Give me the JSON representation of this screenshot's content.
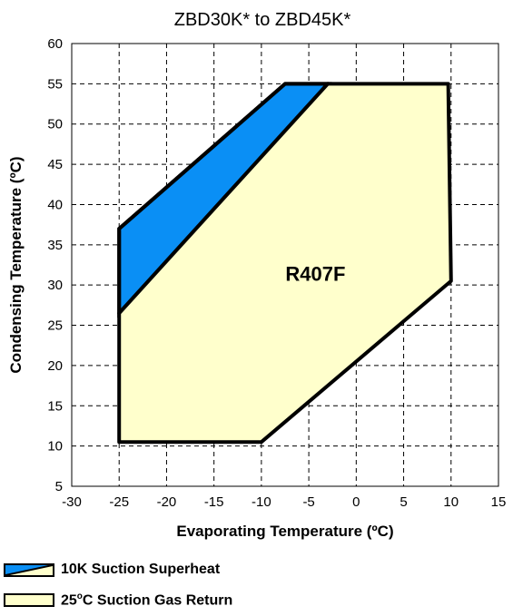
{
  "chart_data": {
    "type": "area",
    "title": "ZBD30K* to ZBD45K*",
    "xlabel": "Evaporating Temperature (ºC)",
    "ylabel": "Condensing Temperature (ºC)",
    "xlim": [
      -30,
      15
    ],
    "ylim": [
      5,
      60
    ],
    "xticks": [
      "-30",
      "-25",
      "-20",
      "-15",
      "-10",
      "-5",
      "0",
      "5",
      "10",
      "15"
    ],
    "yticks": [
      "5",
      "10",
      "15",
      "20",
      "25",
      "30",
      "35",
      "40",
      "45",
      "50",
      "55",
      "60"
    ],
    "grid": true,
    "annotation": "R407F",
    "series": [
      {
        "name": "10K Suction Superheat",
        "color": "#0a8ff5",
        "points": [
          [
            -25,
            26.5
          ],
          [
            -25,
            37
          ],
          [
            -7.5,
            55
          ],
          [
            -3,
            55
          ]
        ]
      },
      {
        "name": "25°C Suction Gas Return",
        "color": "#ffffcc",
        "points": [
          [
            -25,
            10.5
          ],
          [
            -10,
            10.5
          ],
          [
            10,
            30.5
          ],
          [
            9.7,
            55
          ],
          [
            -3,
            55
          ],
          [
            -25,
            26.5
          ]
        ]
      }
    ],
    "outline": [
      [
        -25,
        10.5
      ],
      [
        -10,
        10.5
      ],
      [
        10,
        30.5
      ],
      [
        9.7,
        55
      ],
      [
        -7.5,
        55
      ],
      [
        -25,
        37
      ]
    ],
    "legend_position": "bottom-left"
  },
  "legend": {
    "items": [
      {
        "label": "10K Suction Superheat"
      },
      {
        "label": "25oC Suction Gas Return",
        "prefix": "25",
        "sup": "o",
        "suffix": "C Suction Gas Return"
      }
    ]
  }
}
